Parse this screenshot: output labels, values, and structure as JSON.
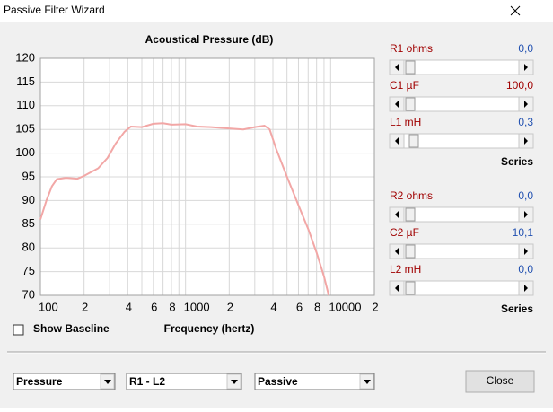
{
  "window": {
    "title": "Passive Filter Wizard"
  },
  "chart_data": {
    "type": "line",
    "title": "Acoustical Pressure (dB)",
    "x_label": "Frequency (hertz)",
    "xscale": "log",
    "grid": true,
    "color": "#f2a7a6",
    "xlim": [
      100,
      20000
    ],
    "xticks": [
      100,
      {
        "value": 200,
        "label": "2"
      },
      {
        "value": 400,
        "label": "4"
      },
      {
        "value": 600,
        "label": "6"
      },
      {
        "value": 800,
        "label": "8"
      },
      1000,
      {
        "value": 2000,
        "label": "2"
      },
      {
        "value": 4000,
        "label": "4"
      },
      {
        "value": 6000,
        "label": "6"
      },
      {
        "value": 8000,
        "label": "8"
      },
      10000,
      {
        "value": 20000,
        "label": "2"
      }
    ],
    "xminorticks": [
      300,
      500,
      700,
      900,
      3000,
      5000,
      7000,
      9000
    ],
    "ylim": [
      70,
      120
    ],
    "yticks": [
      70,
      75,
      80,
      85,
      90,
      95,
      100,
      105,
      110,
      115,
      120
    ],
    "x": [
      100,
      110,
      120,
      130,
      150,
      180,
      200,
      250,
      290,
      330,
      380,
      420,
      500,
      600,
      700,
      800,
      1000,
      1200,
      1500,
      2000,
      2500,
      3000,
      3500,
      3800,
      4200,
      5000,
      6000,
      7000,
      8000,
      9000,
      9700
    ],
    "values": [
      86,
      90,
      93,
      94.5,
      94.8,
      94.6,
      95.2,
      96.8,
      99,
      102,
      104.5,
      105.6,
      105.5,
      106.2,
      106.3,
      106,
      106.1,
      105.6,
      105.5,
      105.2,
      105,
      105.5,
      105.8,
      105,
      101,
      95,
      89,
      84,
      79,
      74,
      70
    ]
  },
  "controls": {
    "sliders": [
      {
        "label": "R1  ohms",
        "value": "0,0"
      },
      {
        "label": "C1  µF",
        "value": "100,0"
      },
      {
        "label": "L1  mH",
        "value": "0,3"
      },
      {
        "label": "R2  ohms",
        "value": "0,0"
      },
      {
        "label": "C2  µF",
        "value": "10,1"
      },
      {
        "label": "L2  mH",
        "value": "0,0"
      }
    ],
    "groups": [
      "Series",
      "Series"
    ],
    "checkbox": "Show Baseline",
    "dropdowns": [
      "Pressure",
      "R1 - L2",
      "Passive"
    ],
    "button": "Close"
  }
}
